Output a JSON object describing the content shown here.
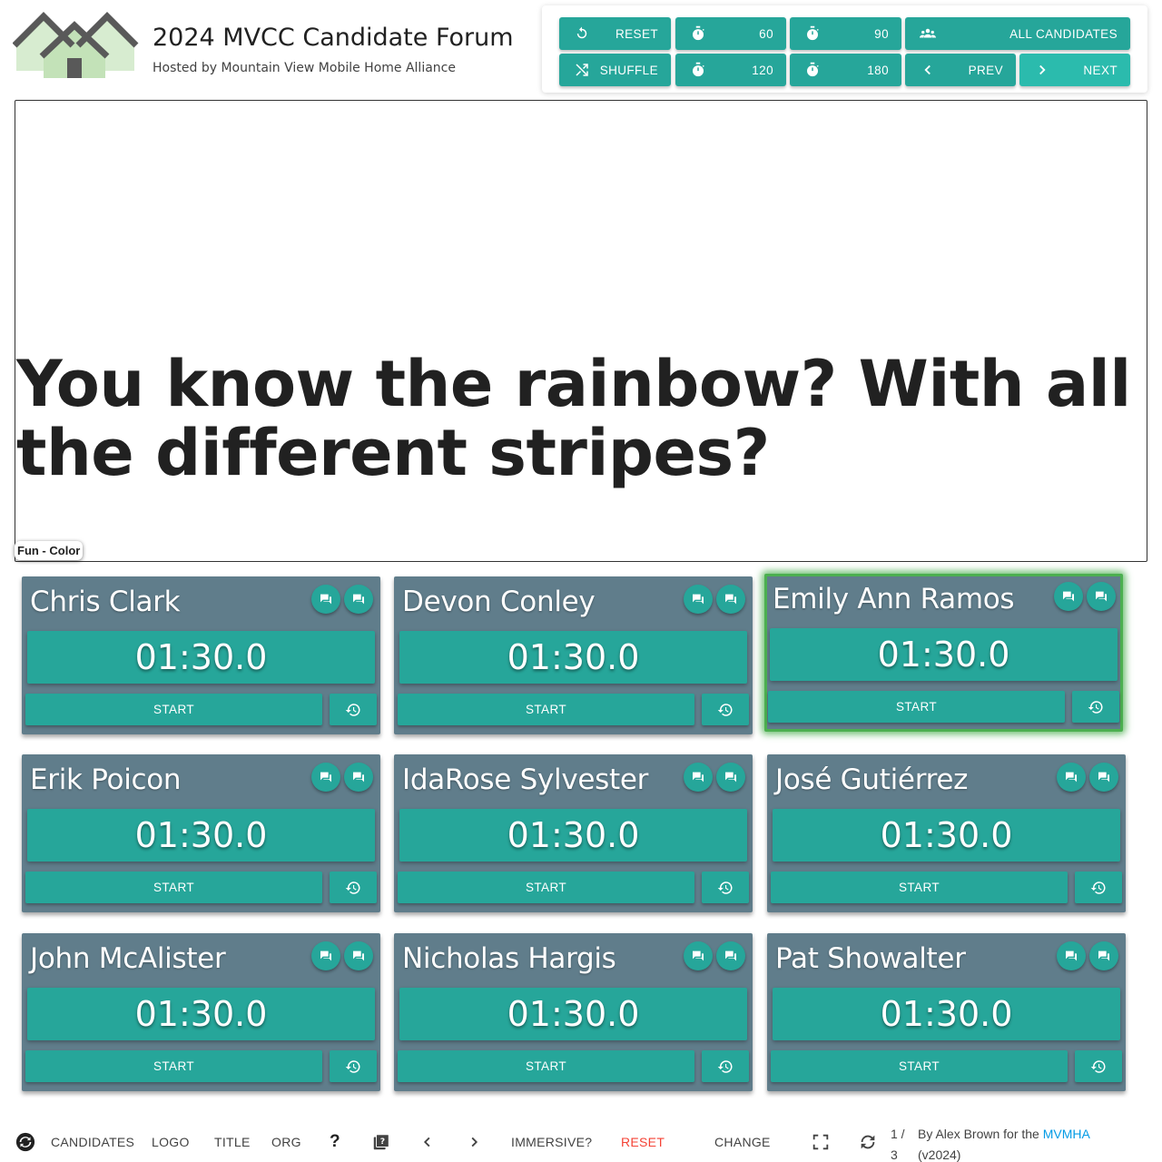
{
  "header": {
    "title": "2024 MVCC Candidate Forum",
    "subtitle": "Hosted by Mountain View Mobile Home Alliance"
  },
  "controls": {
    "reset": "RESET",
    "shuffle": "SHUFFLE",
    "t60": "60",
    "t90": "90",
    "t120": "120",
    "t180": "180",
    "all_candidates": "ALL CANDIDATES",
    "prev": "PREV",
    "next": "NEXT"
  },
  "question": {
    "text": "You know the rainbow? With all the different stripes?",
    "tag": "Fun - Color"
  },
  "candidates": [
    {
      "name": "Chris Clark",
      "time": "01:30.0",
      "start": "START",
      "active": false
    },
    {
      "name": "Devon Conley",
      "time": "01:30.0",
      "start": "START",
      "active": false
    },
    {
      "name": "Emily Ann Ramos",
      "time": "01:30.0",
      "start": "START",
      "active": true
    },
    {
      "name": "Erik Poicon",
      "time": "01:30.0",
      "start": "START",
      "active": false
    },
    {
      "name": "IdaRose Sylvester",
      "time": "01:30.0",
      "start": "START",
      "active": false
    },
    {
      "name": "José Gutiérrez",
      "time": "01:30.0",
      "start": "START",
      "active": false
    },
    {
      "name": "John McAlister",
      "time": "01:30.0",
      "start": "START",
      "active": false
    },
    {
      "name": "Nicholas Hargis",
      "time": "01:30.0",
      "start": "START",
      "active": false
    },
    {
      "name": "Pat Showalter",
      "time": "01:30.0",
      "start": "START",
      "active": false
    }
  ],
  "footer": {
    "candidates": "CANDIDATES",
    "logo": "LOGO",
    "title": "TITLE",
    "org": "ORG",
    "help": "?",
    "immersive": "IMMERSIVE?",
    "reset": "RESET",
    "change": "CHANGE",
    "page_current": "1 /",
    "page_total": "3",
    "credit_prefix": "By Alex Brown for the",
    "credit_link": "MVMHA",
    "credit_version": "(v2024)"
  },
  "colors": {
    "accent": "#26a69a",
    "card": "#607d8b",
    "active_border": "#4caf50",
    "danger": "#f44336",
    "link": "#039be5"
  }
}
